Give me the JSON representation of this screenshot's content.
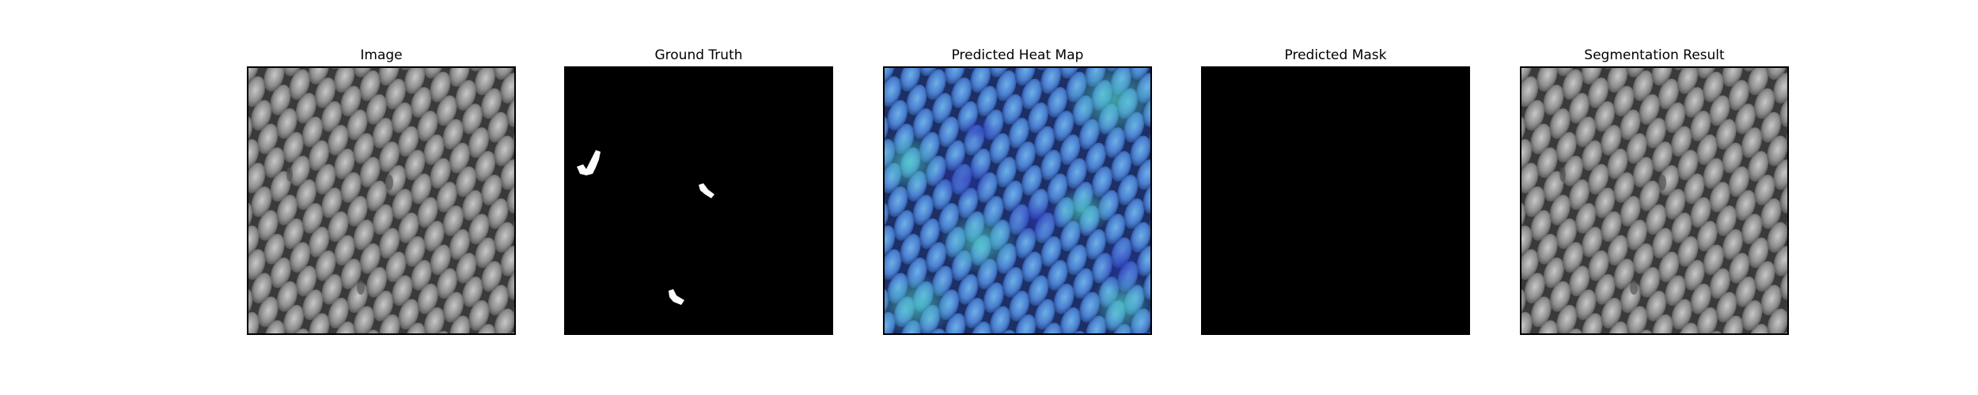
{
  "panels": [
    {
      "title": "Image"
    },
    {
      "title": "Ground Truth"
    },
    {
      "title": "Predicted Heat Map"
    },
    {
      "title": "Predicted Mask"
    },
    {
      "title": "Segmentation Result"
    }
  ],
  "colors": {
    "background": "#ffffff",
    "mask_background": "#000000",
    "mask_foreground": "#ffffff",
    "mesh_light": "#9e9e9e",
    "mesh_dark": "#3a3a3a",
    "heat_low": "#3b5bd6",
    "heat_high": "#4fd0c4"
  }
}
